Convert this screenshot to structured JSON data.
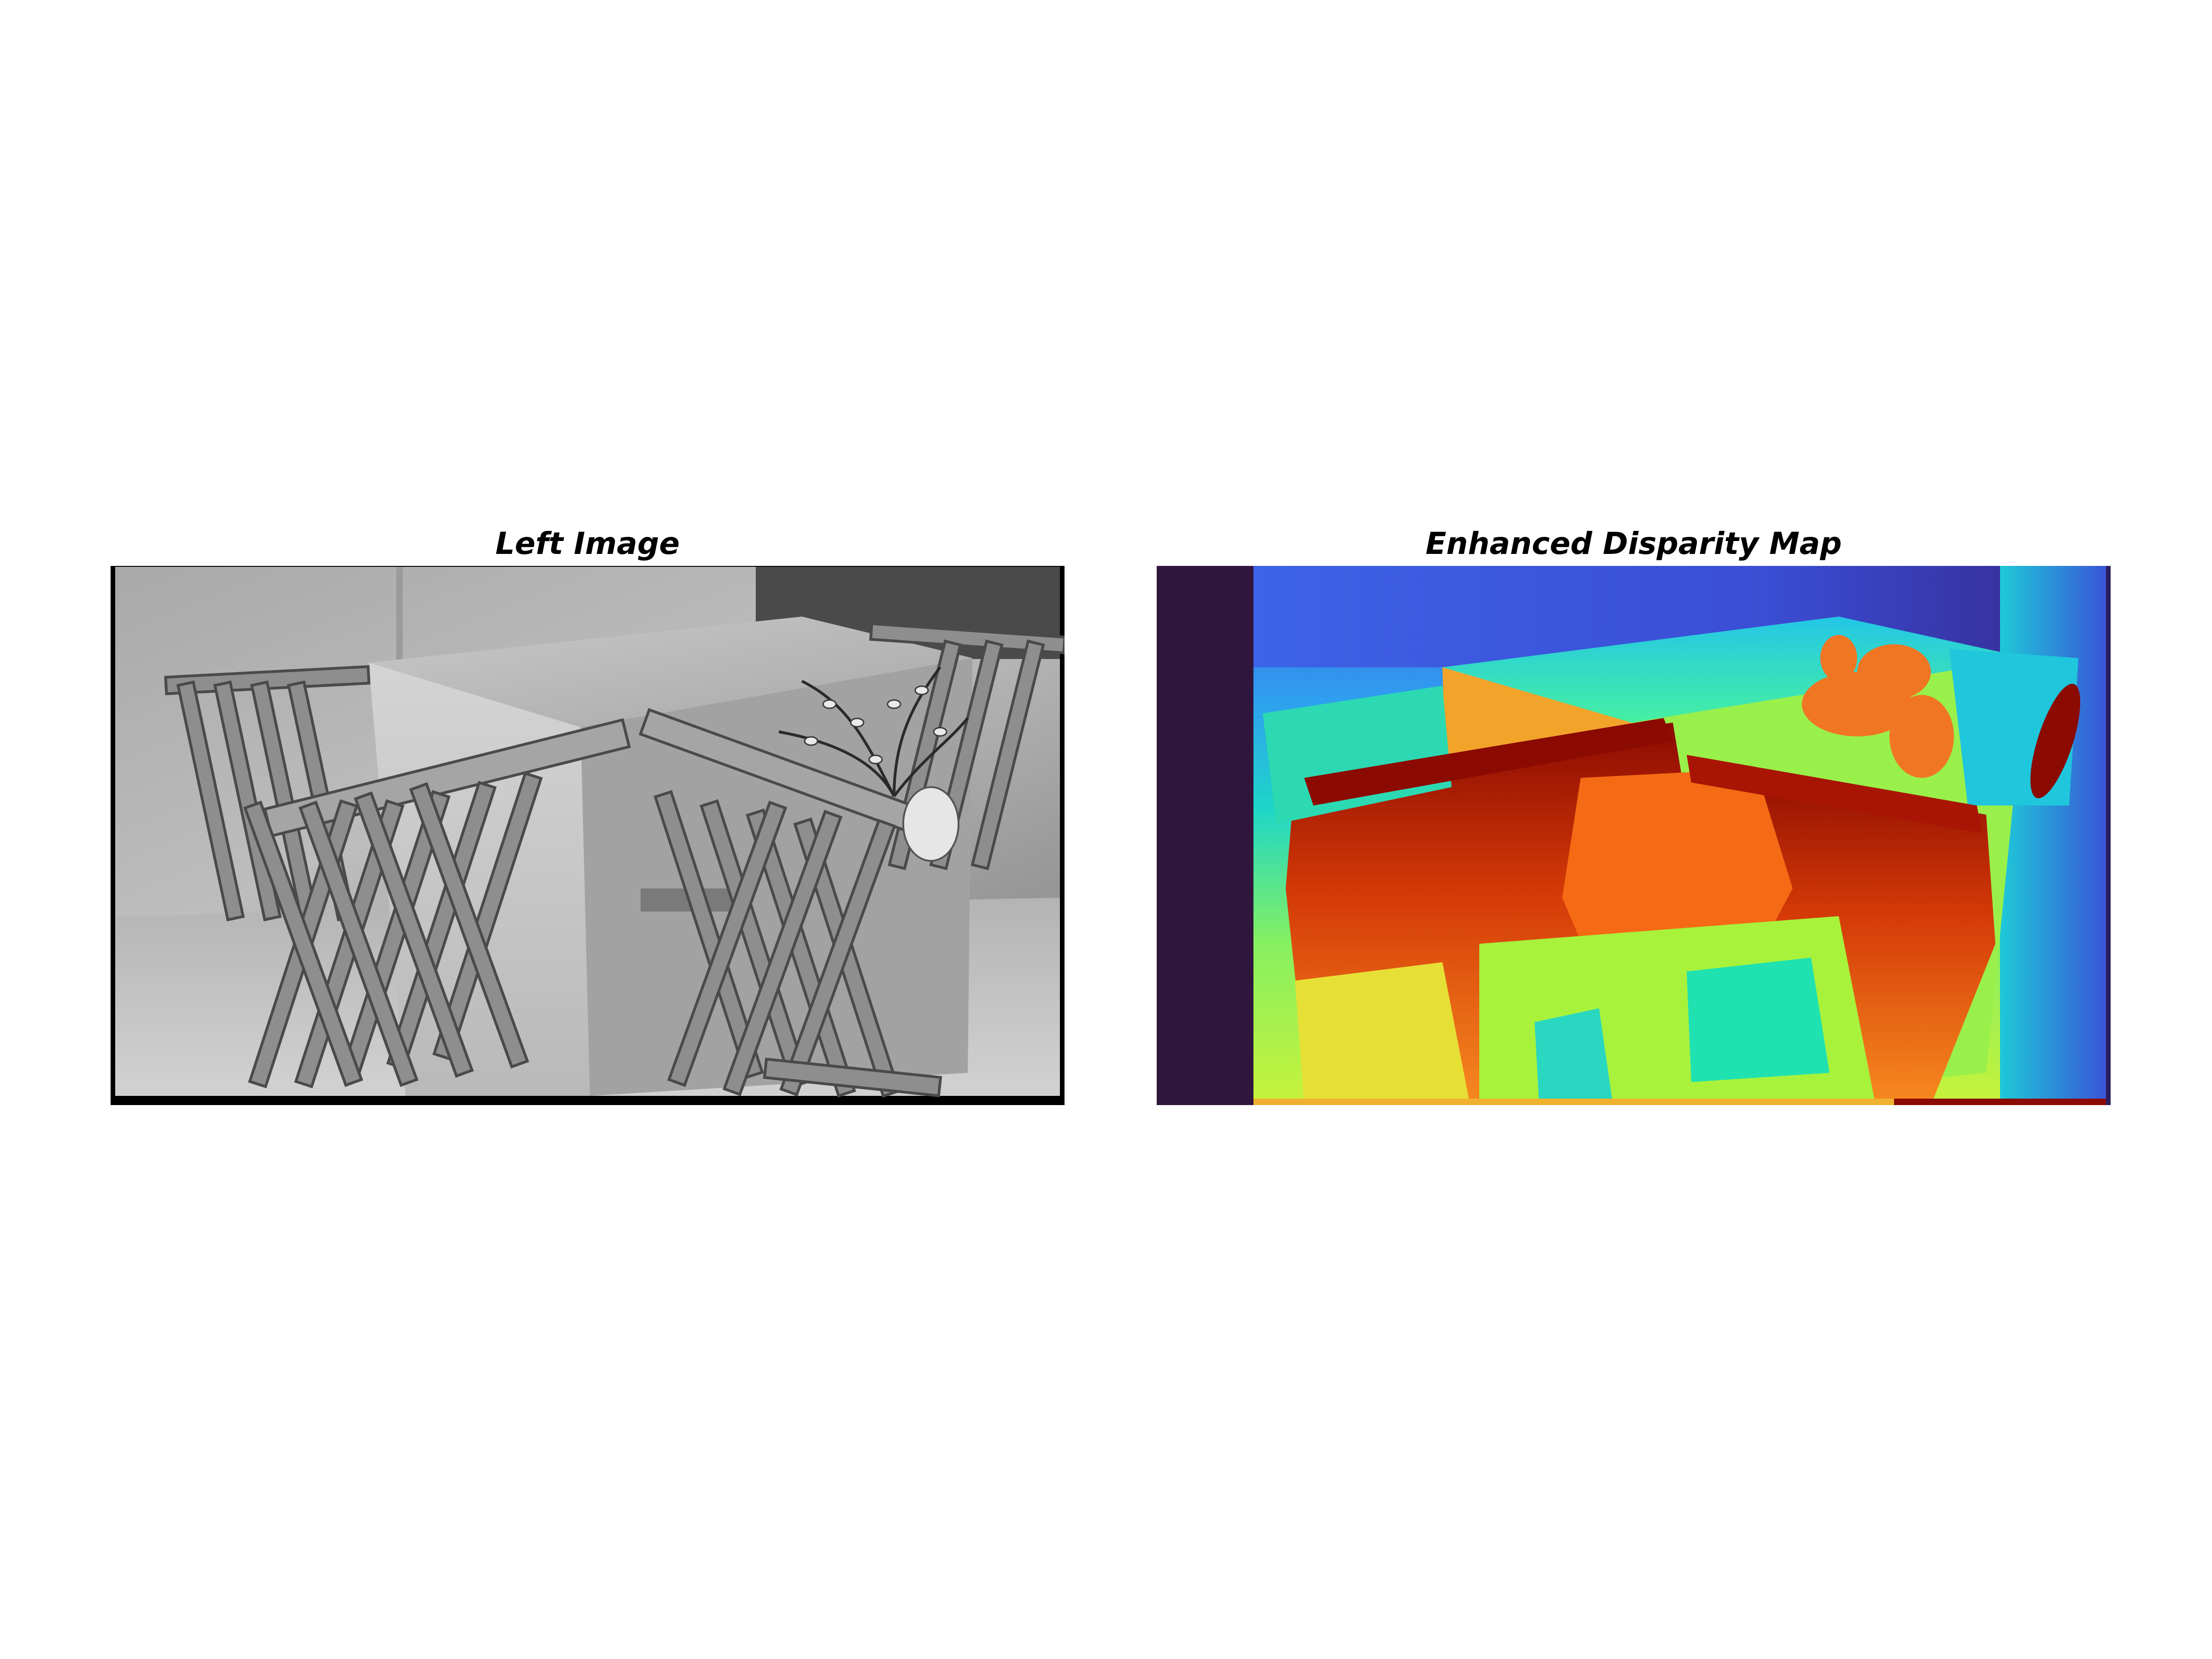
{
  "figure": {
    "panels": [
      {
        "title": "Left Image",
        "content": "grayscale-photo"
      },
      {
        "title": "Enhanced Disparity Map",
        "content": "disparity-heatmap",
        "colormap": "turbo",
        "colors": {
          "near": "#8b0a02",
          "mid_warm": "#f45c12",
          "mid": "#a8f43c",
          "mid_cool": "#1ee0b0",
          "far": "#3b63e6",
          "farthest": "#31155a",
          "invalid_strip": "#30153d"
        }
      }
    ]
  }
}
